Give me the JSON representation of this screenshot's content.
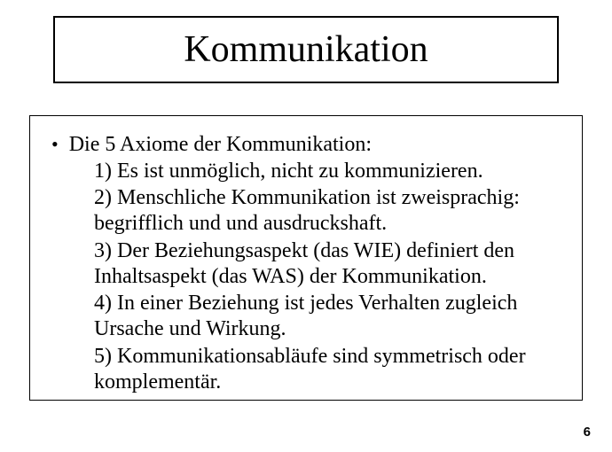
{
  "title": "Kommunikation",
  "heading": "Die 5 Axiome der Kommunikation:",
  "items": {
    "one": "1) Es ist unmöglich, nicht zu kommunizieren.",
    "two": "2) Menschliche Kommunikation ist zweisprachig: begrifflich und und ausdruckshaft.",
    "three": "3) Der Beziehungsaspekt (das WIE) definiert den Inhaltsaspekt (das WAS) der Kommunikation.",
    "four": "4) In einer Beziehung ist jedes Verhalten zugleich Ursache und Wirkung.",
    "five": "5) Kommunikationsabläufe sind symmetrisch oder komplementär."
  },
  "page_number": "6",
  "colors": {
    "background": "#ffffff",
    "text": "#000000",
    "border": "#000000"
  },
  "fonts": {
    "title_size": 42,
    "body_size": 24,
    "page_number_size": 15,
    "family": "Times New Roman"
  }
}
